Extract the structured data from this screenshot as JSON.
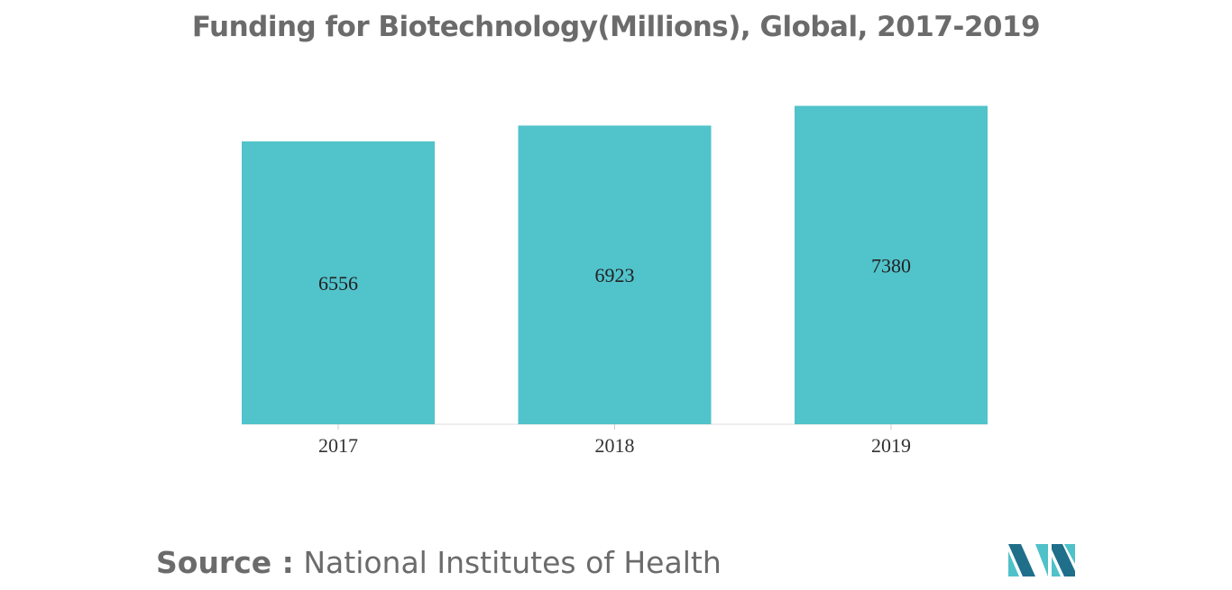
{
  "chart_data": {
    "type": "bar",
    "title": "Funding for Biotechnology(Millions), Global, 2017-2019",
    "categories": [
      "2017",
      "2018",
      "2019"
    ],
    "values": [
      6556,
      6923,
      7380
    ],
    "value_labels": [
      "6556",
      "6923",
      "7380"
    ],
    "xlabel": "",
    "ylabel": "",
    "ylim": [
      0,
      7850
    ],
    "grid": false,
    "legend": "none",
    "bar_color": "#51c3cb"
  },
  "source": {
    "label": "Source :",
    "text": "National Institutes of Health"
  },
  "logo": {
    "icon": "mordor-intelligence-logo",
    "colors": [
      "#1f6f8b",
      "#4fc1c9"
    ]
  }
}
